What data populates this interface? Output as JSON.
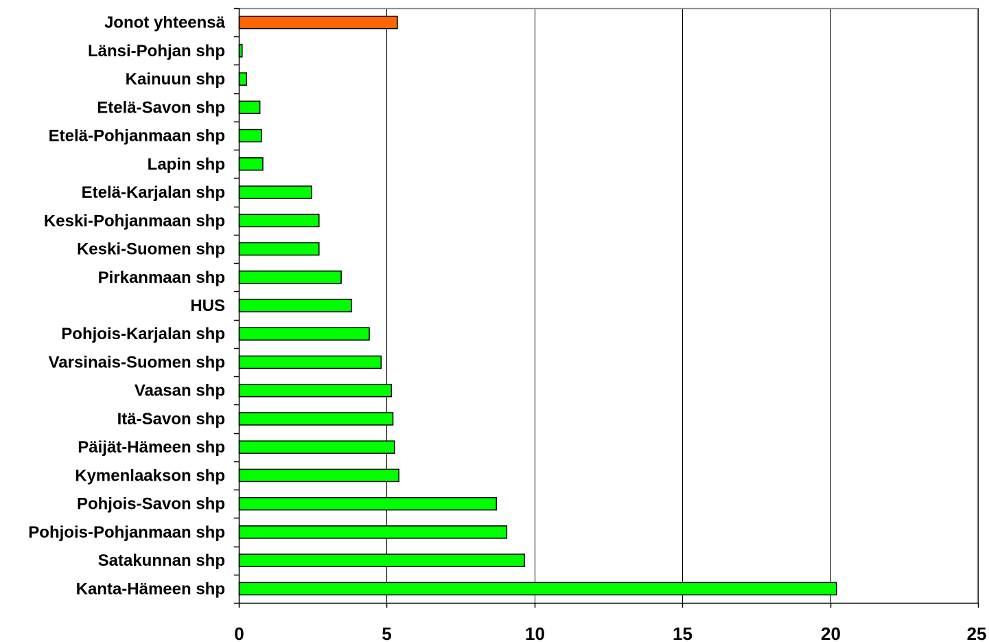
{
  "chart_data": {
    "type": "bar",
    "orientation": "horizontal",
    "title": "",
    "xlabel": "",
    "ylabel": "",
    "xlim": [
      0,
      25
    ],
    "xticks": [
      0,
      5,
      10,
      15,
      20,
      25
    ],
    "grid": true,
    "categories": [
      "Jonot yhteensä",
      "Länsi-Pohjan shp",
      "Kainuun shp",
      "Etelä-Savon shp",
      "Etelä-Pohjanmaan shp",
      "Lapin shp",
      "Etelä-Karjalan shp",
      "Keski-Pohjanmaan shp",
      "Keski-Suomen shp",
      "Pirkanmaan shp",
      "HUS",
      "Pohjois-Karjalan shp",
      "Varsinais-Suomen shp",
      "Vaasan shp",
      "Itä-Savon shp",
      "Päijät-Hämeen shp",
      "Kymenlaakson shp",
      "Pohjois-Savon shp",
      "Pohjois-Pohjanmaan shp",
      "Satakunnan shp",
      "Kanta-Hämeen shp"
    ],
    "values": [
      5.35,
      0.1,
      0.25,
      0.7,
      0.75,
      0.8,
      2.45,
      2.7,
      2.7,
      3.45,
      3.8,
      4.4,
      4.8,
      5.15,
      5.2,
      5.25,
      5.4,
      8.7,
      9.05,
      9.65,
      20.2
    ],
    "colors": {
      "total": "#ff6600",
      "default": "#00ff00",
      "outline": "#000000",
      "grid": "#000000"
    }
  }
}
